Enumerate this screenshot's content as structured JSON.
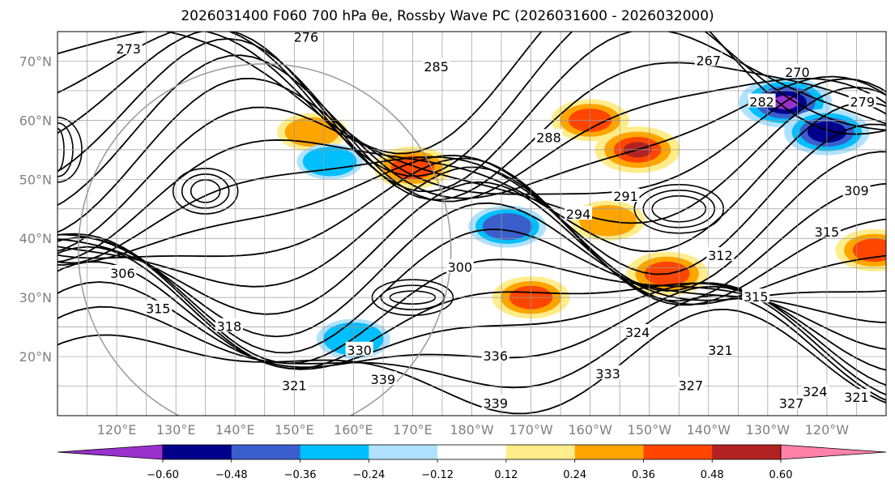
{
  "title": "2026031400 F060 700 hPa θe, Rossby Wave PC (2026031600 - 2026032000)",
  "chart_data": {
    "type": "contour-map",
    "projection": "plate-carree",
    "lon_range": [
      110,
      250
    ],
    "lat_range": [
      10,
      75
    ],
    "lat_ticks": [
      "20°N",
      "30°N",
      "40°N",
      "50°N",
      "60°N",
      "70°N"
    ],
    "lon_ticks": [
      "120°E",
      "130°E",
      "140°E",
      "150°E",
      "160°E",
      "170°E",
      "180°W",
      "170°W",
      "160°W",
      "150°W",
      "140°W",
      "130°W",
      "120°W"
    ],
    "contour_variable": "700 hPa θe (K)",
    "contour_labels": [
      {
        "text": "273",
        "lon": 122,
        "lat": 72
      },
      {
        "text": "276",
        "lon": 152,
        "lat": 74
      },
      {
        "text": "285",
        "lon": 174,
        "lat": 69
      },
      {
        "text": "267",
        "lon": 220,
        "lat": 70
      },
      {
        "text": "270",
        "lon": 235,
        "lat": 68
      },
      {
        "text": "282",
        "lon": 229,
        "lat": 63
      },
      {
        "text": "279",
        "lon": 246,
        "lat": 63
      },
      {
        "text": "288",
        "lon": 193,
        "lat": 57
      },
      {
        "text": "291",
        "lon": 206,
        "lat": 47
      },
      {
        "text": "294",
        "lon": 198,
        "lat": 44
      },
      {
        "text": "309",
        "lon": 245,
        "lat": 48
      },
      {
        "text": "315",
        "lon": 240,
        "lat": 41
      },
      {
        "text": "300",
        "lon": 178,
        "lat": 35
      },
      {
        "text": "312",
        "lon": 222,
        "lat": 37
      },
      {
        "text": "315",
        "lon": 228,
        "lat": 30
      },
      {
        "text": "306",
        "lon": 121,
        "lat": 34
      },
      {
        "text": "315",
        "lon": 127,
        "lat": 28
      },
      {
        "text": "318",
        "lon": 139,
        "lat": 25
      },
      {
        "text": "321",
        "lon": 222,
        "lat": 21
      },
      {
        "text": "324",
        "lon": 208,
        "lat": 24
      },
      {
        "text": "327",
        "lon": 217,
        "lat": 15
      },
      {
        "text": "330",
        "lon": 161,
        "lat": 21
      },
      {
        "text": "333",
        "lon": 203,
        "lat": 17
      },
      {
        "text": "336",
        "lon": 184,
        "lat": 20
      },
      {
        "text": "339",
        "lon": 165,
        "lat": 16
      },
      {
        "text": "339",
        "lon": 184,
        "lat": 12
      },
      {
        "text": "327",
        "lon": 234,
        "lat": 12
      },
      {
        "text": "324",
        "lon": 238,
        "lat": 14
      },
      {
        "text": "321",
        "lon": 245,
        "lat": 13
      },
      {
        "text": "321",
        "lon": 150,
        "lat": 15
      }
    ],
    "shading_variable": "Rossby Wave PC",
    "colorbar": {
      "extend": "both",
      "levels": [
        -0.6,
        -0.48,
        -0.36,
        -0.24,
        -0.12,
        0.12,
        0.24,
        0.36,
        0.48,
        0.6
      ],
      "tick_labels": [
        "−0.60",
        "−0.48",
        "−0.36",
        "−0.24",
        "−0.12",
        "0.12",
        "0.24",
        "0.36",
        "0.48",
        "0.60"
      ],
      "colors": [
        "#9932cc",
        "#00008b",
        "#3a5fcd",
        "#00bfff",
        "#b0e2ff",
        "#ffffff",
        "#ffec8b",
        "#ffa500",
        "#ff4500",
        "#b22222",
        "#ff82ab"
      ]
    },
    "positive_anomaly_regions": [
      {
        "lon": 208,
        "lat": 55,
        "value": 0.5
      },
      {
        "lon": 200,
        "lat": 60,
        "value": 0.4
      },
      {
        "lon": 170,
        "lat": 52,
        "value": 0.4
      },
      {
        "lon": 153,
        "lat": 58,
        "value": 0.3
      },
      {
        "lon": 213,
        "lat": 34,
        "value": 0.45
      },
      {
        "lon": 190,
        "lat": 30,
        "value": 0.4
      },
      {
        "lon": 203,
        "lat": 43,
        "value": 0.35
      },
      {
        "lon": 248,
        "lat": 38,
        "value": 0.4
      }
    ],
    "negative_anomaly_regions": [
      {
        "lon": 233,
        "lat": 63,
        "value": -0.6
      },
      {
        "lon": 240,
        "lat": 58,
        "value": -0.5
      },
      {
        "lon": 160,
        "lat": 23,
        "value": -0.35
      },
      {
        "lon": 186,
        "lat": 42,
        "value": -0.4
      },
      {
        "lon": 156,
        "lat": 53,
        "value": -0.25
      }
    ],
    "grid": true
  }
}
